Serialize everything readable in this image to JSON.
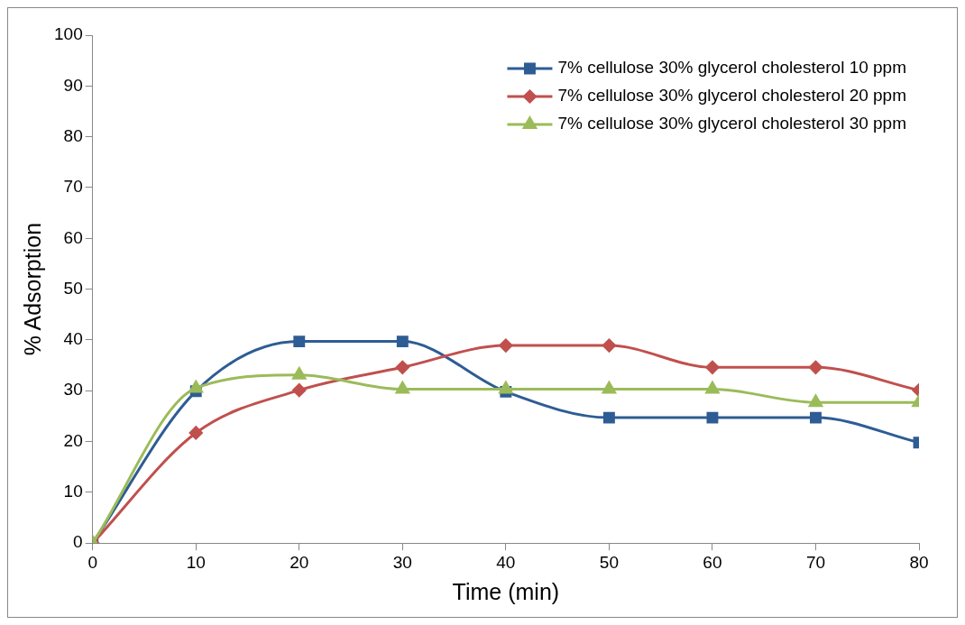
{
  "chart_data": {
    "type": "line",
    "xlabel": "Time (min)",
    "ylabel": "% Adsorption",
    "x": [
      0,
      10,
      20,
      30,
      40,
      50,
      60,
      70,
      80
    ],
    "xlim": [
      0,
      80
    ],
    "xticks": [
      0,
      10,
      20,
      30,
      40,
      50,
      60,
      70,
      80
    ],
    "ylim": [
      0,
      100
    ],
    "yticks": [
      0,
      10,
      20,
      30,
      40,
      50,
      60,
      70,
      80,
      90,
      100
    ],
    "grid": false,
    "legend": "top right",
    "line_style": "solid",
    "series": [
      {
        "name": "7% cellulose 30% glycerol cholesterol 10 ppm",
        "color": "#2e5c94",
        "marker": "square",
        "values": [
          0,
          29.9,
          39.7,
          39.7,
          29.8,
          24.7,
          24.7,
          24.7,
          19.8
        ]
      },
      {
        "name": "7% cellulose 30% glycerol cholesterol 20 ppm",
        "color": "#c0504d",
        "marker": "diamond",
        "values": [
          0,
          21.7,
          30.1,
          34.6,
          38.9,
          38.9,
          34.6,
          34.6,
          30.1
        ]
      },
      {
        "name": "7% cellulose 30% glycerol cholesterol 30 ppm",
        "color": "#9bbb59",
        "marker": "triangle",
        "values": [
          0,
          30.5,
          33.1,
          30.3,
          30.3,
          30.3,
          30.3,
          27.7,
          27.7
        ]
      }
    ]
  }
}
